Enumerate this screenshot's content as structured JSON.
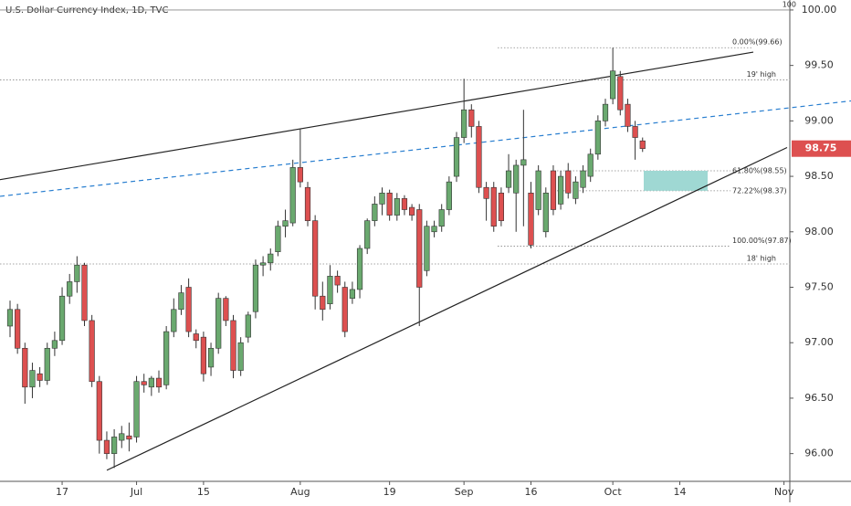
{
  "chart_data": {
    "type": "candlestick",
    "title": "U.S. Dollar Currency Index, 1D, TVC",
    "categories": [
      null,
      null,
      null,
      null,
      null,
      null,
      null,
      "17",
      null,
      null,
      null,
      null,
      null,
      null,
      null,
      null,
      null,
      "Jul",
      null,
      null,
      null,
      null,
      null,
      null,
      null,
      null,
      "15",
      null,
      null,
      null,
      null,
      null,
      null,
      null,
      null,
      null,
      null,
      null,
      null,
      "Aug",
      null,
      null,
      null,
      null,
      null,
      null,
      null,
      null,
      null,
      null,
      null,
      "19",
      null,
      null,
      null,
      null,
      null,
      null,
      null,
      null,
      null,
      "Sep",
      null,
      null,
      null,
      null,
      null,
      null,
      null,
      null,
      "16",
      null,
      null,
      null,
      null,
      null,
      null,
      null,
      null,
      null,
      null,
      "Oct",
      null,
      null,
      null,
      null,
      null,
      null,
      null,
      null,
      "14",
      null,
      null,
      null,
      null,
      null,
      null,
      null,
      null,
      null,
      null,
      null,
      null,
      null,
      "Nov"
    ],
    "open": [
      97.15,
      97.3,
      96.95,
      96.6,
      96.72,
      96.66,
      96.95,
      97.02,
      97.42,
      97.55,
      97.7,
      97.2,
      96.65,
      96.12,
      96.0,
      96.12,
      96.16,
      96.15,
      96.65,
      96.6,
      96.68,
      96.62,
      97.1,
      97.3,
      97.5,
      97.08,
      97.05,
      96.78,
      96.95,
      97.4,
      97.2,
      96.75,
      97.05,
      97.28,
      97.7,
      97.72,
      97.82,
      98.05,
      98.08,
      98.58,
      98.4,
      98.1,
      97.42,
      97.35,
      97.6,
      97.5,
      97.4,
      97.48,
      97.85,
      98.1,
      98.25,
      98.35,
      98.15,
      98.3,
      98.22,
      98.2,
      97.65,
      98.0,
      98.05,
      98.2,
      98.5,
      98.85,
      99.1,
      98.95,
      98.4,
      98.4,
      98.35,
      98.4,
      98.35,
      98.6,
      98.35,
      98.2,
      98.0,
      98.55,
      98.25,
      98.55,
      98.3,
      98.4,
      98.5,
      98.7,
      99.0,
      99.2,
      99.4,
      99.15,
      98.95,
      98.82,
      null,
      null,
      null,
      null,
      null,
      null,
      null,
      null,
      null,
      null,
      null,
      null,
      null,
      null,
      null,
      null,
      null,
      null,
      null
    ],
    "high": [
      97.38,
      97.35,
      97.0,
      96.82,
      96.78,
      97.0,
      97.1,
      97.5,
      97.62,
      97.78,
      97.72,
      97.25,
      96.7,
      96.2,
      96.22,
      96.25,
      96.28,
      96.7,
      96.72,
      96.7,
      96.75,
      97.15,
      97.4,
      97.52,
      97.58,
      97.12,
      97.1,
      97.0,
      97.45,
      97.42,
      97.25,
      97.05,
      97.28,
      97.75,
      97.78,
      97.85,
      98.1,
      98.2,
      98.65,
      98.93,
      98.45,
      98.15,
      97.55,
      97.7,
      97.65,
      97.55,
      97.55,
      97.88,
      98.12,
      98.32,
      98.4,
      98.38,
      98.35,
      98.33,
      98.25,
      98.25,
      98.1,
      98.1,
      98.25,
      98.5,
      98.9,
      99.38,
      99.15,
      99.0,
      98.45,
      98.45,
      98.4,
      98.7,
      98.65,
      99.1,
      98.45,
      98.6,
      98.4,
      98.6,
      98.55,
      98.62,
      98.5,
      98.6,
      98.75,
      99.05,
      99.2,
      99.66,
      99.45,
      99.2,
      99.0,
      98.85,
      null,
      null,
      null,
      null,
      null,
      null,
      null,
      null,
      null,
      null,
      null,
      null,
      null,
      null,
      null,
      null,
      null,
      null,
      null
    ],
    "low": [
      97.05,
      96.9,
      96.45,
      96.5,
      96.6,
      96.62,
      96.88,
      96.98,
      97.35,
      97.45,
      97.15,
      96.6,
      96.0,
      95.95,
      95.87,
      96.05,
      96.02,
      96.1,
      96.55,
      96.52,
      96.55,
      96.58,
      97.05,
      97.25,
      97.05,
      96.95,
      96.65,
      96.7,
      96.9,
      97.15,
      96.68,
      96.7,
      97.0,
      97.22,
      97.6,
      97.65,
      97.78,
      97.95,
      98.05,
      98.4,
      98.05,
      97.3,
      97.2,
      97.3,
      97.45,
      97.05,
      97.35,
      97.4,
      97.8,
      98.05,
      98.15,
      98.1,
      98.1,
      98.15,
      98.1,
      97.15,
      97.6,
      97.95,
      98.0,
      98.15,
      98.45,
      98.8,
      98.85,
      98.35,
      98.1,
      98.0,
      98.05,
      98.35,
      98.0,
      98.05,
      97.85,
      98.15,
      97.95,
      98.15,
      98.2,
      98.3,
      98.25,
      98.35,
      98.45,
      98.65,
      98.95,
      99.15,
      99.05,
      98.9,
      98.65,
      98.72,
      null,
      null,
      null,
      null,
      null,
      null,
      null,
      null,
      null,
      null,
      null,
      null,
      null,
      null,
      null,
      null,
      null,
      null,
      null
    ],
    "close": [
      97.3,
      96.95,
      96.6,
      96.75,
      96.66,
      96.95,
      97.02,
      97.42,
      97.55,
      97.7,
      97.2,
      96.65,
      96.12,
      96.0,
      96.15,
      96.18,
      96.13,
      96.65,
      96.62,
      96.68,
      96.6,
      97.1,
      97.3,
      97.45,
      97.1,
      97.02,
      96.72,
      96.95,
      97.4,
      97.2,
      96.75,
      97.0,
      97.25,
      97.7,
      97.72,
      97.8,
      98.05,
      98.1,
      98.58,
      98.45,
      98.1,
      97.42,
      97.3,
      97.6,
      97.52,
      97.1,
      97.48,
      97.85,
      98.1,
      98.25,
      98.35,
      98.15,
      98.3,
      98.2,
      98.15,
      97.5,
      98.05,
      98.05,
      98.2,
      98.45,
      98.85,
      99.1,
      98.95,
      98.4,
      98.3,
      98.05,
      98.1,
      98.55,
      98.6,
      98.65,
      97.88,
      98.55,
      98.35,
      98.2,
      98.5,
      98.35,
      98.45,
      98.55,
      98.7,
      99.0,
      99.15,
      99.45,
      99.1,
      98.95,
      98.85,
      98.75,
      null,
      null,
      null,
      null,
      null,
      null,
      null,
      null,
      null,
      null,
      null,
      null,
      null,
      null,
      null,
      null,
      null,
      null,
      null
    ],
    "up_color": "#6aa96f",
    "down_color": "#dd5050",
    "ylim": [
      95.75,
      100.09
    ],
    "yticks": [
      {
        "value": 96,
        "label": "96.00"
      },
      {
        "value": 96.5,
        "label": "96.50"
      },
      {
        "value": 97,
        "label": "97.00"
      },
      {
        "value": 97.5,
        "label": "97.50"
      },
      {
        "value": 98,
        "label": "98.00"
      },
      {
        "value": 98.5,
        "label": "98.50"
      },
      {
        "value": 99,
        "label": "99.00"
      },
      {
        "value": 99.5,
        "label": "99.50"
      },
      {
        "value": 100,
        "label": "100.00"
      }
    ],
    "levels": [
      {
        "label": "100",
        "value": 100
      },
      {
        "label": "0.00%(99.66)",
        "value": 99.66
      },
      {
        "label": "19' high",
        "value": 99.37
      },
      {
        "label": "61.80%(98.55)",
        "value": 98.55
      },
      {
        "label": "72.22%(98.37)",
        "value": 98.37
      },
      {
        "label": "100.00%(97.87)",
        "value": 97.87
      },
      {
        "label": "18' high",
        "value": 97.71
      }
    ],
    "trendlines": [
      {
        "start": 98.47,
        "end": 99.62,
        "color": "#222222",
        "dashed": false
      },
      {
        "start": 98.32,
        "end": 99.18,
        "color": "#2a7fd0",
        "dashed": true
      },
      {
        "start": 95.85,
        "end": 98.76,
        "color": "#222222",
        "dashed": false
      }
    ],
    "zone": {
      "top": 98.55,
      "bottom": 98.37,
      "color": "#9fd8d3"
    }
  }
}
